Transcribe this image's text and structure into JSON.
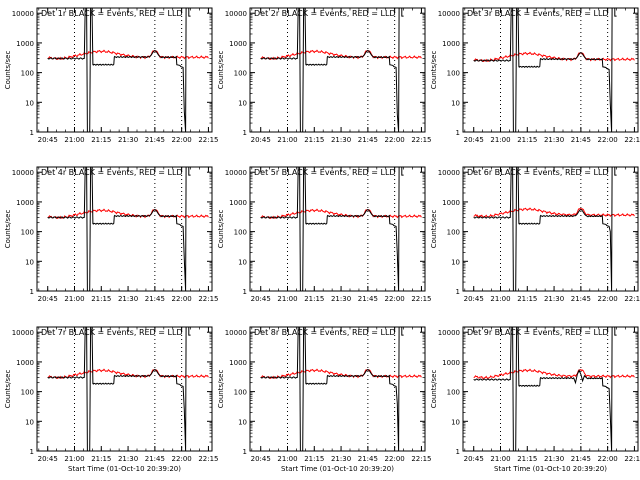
{
  "figure": {
    "background": "#ffffff",
    "events_color": "#000000",
    "lld_color": "#ff0000",
    "marker_style": "dotted"
  },
  "chart_data": [
    {
      "type": "line",
      "title": "Det 1r BLACK = Events, RED = LLD",
      "ylabel": "Counts/sec",
      "xlabel": "",
      "xlim": [
        "20:39",
        "22:17"
      ],
      "ylim": [
        1,
        15000
      ],
      "yscale": "log",
      "xticks": [
        "20:45",
        "21:00",
        "21:15",
        "21:30",
        "21:45",
        "22:00",
        "22:15"
      ],
      "yticks": [
        "1",
        "10",
        "100",
        "1000",
        "10000"
      ],
      "markers": [
        "21:00",
        "21:45",
        "22:00"
      ],
      "lld_amp": 1.0,
      "events_amp": 1.0,
      "drop_min": 5,
      "extra_dip": false
    },
    {
      "type": "line",
      "title": "Det 2r BLACK = Events, RED = LLD",
      "ylabel": "Counts/sec",
      "xlabel": "",
      "xlim": [
        "20:39",
        "22:17"
      ],
      "ylim": [
        1,
        15000
      ],
      "yscale": "log",
      "xticks": [
        "20:45",
        "21:00",
        "21:15",
        "21:30",
        "21:45",
        "22:00",
        "22:15"
      ],
      "yticks": [
        "1",
        "10",
        "100",
        "1000",
        "10000"
      ],
      "markers": [
        "21:00",
        "21:45",
        "22:00"
      ],
      "lld_amp": 1.0,
      "events_amp": 1.0,
      "drop_min": 4,
      "extra_dip": false
    },
    {
      "type": "line",
      "title": "Det 3r BLACK = Events, RED = LLD",
      "ylabel": "Counts/sec",
      "xlabel": "",
      "xlim": [
        "20:39",
        "22:17"
      ],
      "ylim": [
        1,
        15000
      ],
      "yscale": "log",
      "xticks": [
        "20:45",
        "21:00",
        "21:15",
        "21:30",
        "21:45",
        "22:00",
        "22:15"
      ],
      "yticks": [
        "1",
        "10",
        "100",
        "1000",
        "10000"
      ],
      "markers": [
        "21:00",
        "21:45",
        "22:00"
      ],
      "lld_amp": 0.85,
      "events_amp": 0.85,
      "drop_min": 9,
      "extra_dip": false
    },
    {
      "type": "line",
      "title": "Det 4r BLACK = Events, RED = LLD",
      "ylabel": "Counts/sec",
      "xlabel": "",
      "xlim": [
        "20:39",
        "22:17"
      ],
      "ylim": [
        1,
        15000
      ],
      "yscale": "log",
      "xticks": [
        "20:45",
        "21:00",
        "21:15",
        "21:30",
        "21:45",
        "22:00",
        "22:15"
      ],
      "yticks": [
        "1",
        "10",
        "100",
        "1000",
        "10000"
      ],
      "markers": [
        "21:00",
        "21:45",
        "22:00"
      ],
      "lld_amp": 1.0,
      "events_amp": 1.0,
      "drop_min": 12,
      "extra_dip": false
    },
    {
      "type": "line",
      "title": "Det 5r BLACK = Events, RED = LLD",
      "ylabel": "Counts/sec",
      "xlabel": "",
      "xlim": [
        "20:39",
        "22:17"
      ],
      "ylim": [
        1,
        15000
      ],
      "yscale": "log",
      "xticks": [
        "20:45",
        "21:00",
        "21:15",
        "21:30",
        "21:45",
        "22:00",
        "22:15"
      ],
      "yticks": [
        "1",
        "10",
        "100",
        "1000",
        "10000"
      ],
      "markers": [
        "21:00",
        "21:45",
        "22:00"
      ],
      "lld_amp": 1.0,
      "events_amp": 1.0,
      "drop_min": 18,
      "extra_dip": false
    },
    {
      "type": "line",
      "title": "Det 6r BLACK = Events, RED = LLD",
      "ylabel": "Counts/sec",
      "xlabel": "",
      "xlim": [
        "20:39",
        "22:17"
      ],
      "ylim": [
        1,
        15000
      ],
      "yscale": "log",
      "xticks": [
        "20:45",
        "21:00",
        "21:15",
        "21:30",
        "21:45",
        "22:00",
        "22:15"
      ],
      "yticks": [
        "1",
        "10",
        "100",
        "1000",
        "10000"
      ],
      "markers": [
        "21:00",
        "21:45",
        "22:00"
      ],
      "lld_amp": 1.1,
      "events_amp": 1.0,
      "drop_min": 100,
      "extra_dip": false
    },
    {
      "type": "line",
      "title": "Det 7r BLACK = Events, RED = LLD",
      "ylabel": "Counts/sec",
      "xlabel": "Start Time (01-Oct-10 20:39:20)",
      "xlim": [
        "20:39",
        "22:17"
      ],
      "ylim": [
        1,
        15000
      ],
      "yscale": "log",
      "xticks": [
        "20:45",
        "21:00",
        "21:15",
        "21:30",
        "21:45",
        "22:00",
        "22:15"
      ],
      "yticks": [
        "1",
        "10",
        "100",
        "1000",
        "10000"
      ],
      "markers": [
        "21:00",
        "21:45",
        "22:00"
      ],
      "lld_amp": 1.0,
      "events_amp": 1.0,
      "drop_min": 25,
      "extra_dip": false
    },
    {
      "type": "line",
      "title": "Det 8r BLACK = Events, RED = LLD",
      "ylabel": "Counts/sec",
      "xlabel": "Start Time (01-Oct-10 20:39:20)",
      "xlim": [
        "20:39",
        "22:17"
      ],
      "ylim": [
        1,
        15000
      ],
      "yscale": "log",
      "xticks": [
        "20:45",
        "21:00",
        "21:15",
        "21:30",
        "21:45",
        "22:00",
        "22:15"
      ],
      "yticks": [
        "1",
        "10",
        "100",
        "1000",
        "10000"
      ],
      "markers": [
        "21:00",
        "21:45",
        "22:00"
      ],
      "lld_amp": 1.0,
      "events_amp": 1.0,
      "drop_min": 40,
      "extra_dip": false
    },
    {
      "type": "line",
      "title": "Det 9r BLACK = Events, RED = LLD",
      "ylabel": "Counts/sec",
      "xlabel": "Start Time (01-Oct-10 20:39:20)",
      "xlim": [
        "20:39",
        "22:17"
      ],
      "ylim": [
        1,
        15000
      ],
      "yscale": "log",
      "xticks": [
        "20:45",
        "21:00",
        "21:15",
        "21:30",
        "21:45",
        "22:00",
        "22:15"
      ],
      "yticks": [
        "1",
        "10",
        "100",
        "1000",
        "10000"
      ],
      "markers": [
        "21:00",
        "21:45",
        "22:00"
      ],
      "lld_amp": 1.0,
      "events_amp": 0.85,
      "drop_min": 15,
      "extra_dip": true
    }
  ]
}
